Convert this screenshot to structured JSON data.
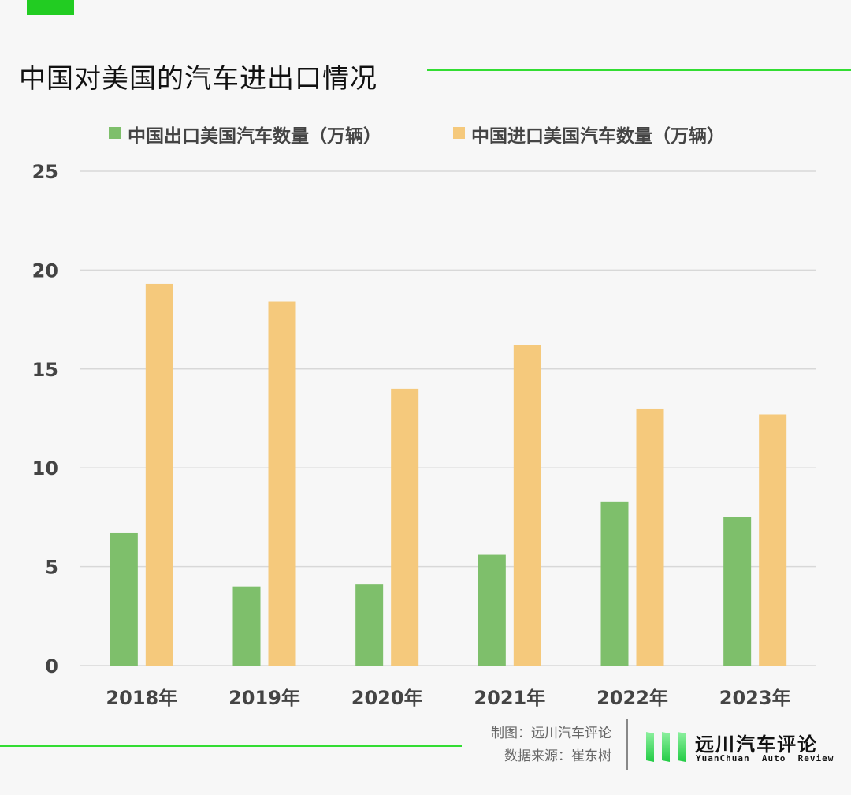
{
  "colors": {
    "export": "#7ebf6b",
    "import": "#f5c97c",
    "accent": "#33dd33"
  },
  "credits": {
    "maker": "制图：远川汽车评论",
    "source": "数据来源：崔东树"
  },
  "logo": {
    "cn": "远川汽车评论",
    "en": "YuanChuan  Auto  Review",
    "icon": "bars-logo-icon"
  },
  "chart_data": {
    "type": "bar",
    "title": "中国对美国的汽车进出口情况",
    "categories": [
      "2018年",
      "2019年",
      "2020年",
      "2021年",
      "2022年",
      "2023年"
    ],
    "series": [
      {
        "name": "中国出口美国汽车数量（万辆）",
        "values": [
          6.7,
          4.0,
          4.1,
          5.6,
          8.3,
          7.5
        ]
      },
      {
        "name": "中国进口美国汽车数量（万辆）",
        "values": [
          19.3,
          18.4,
          14.0,
          16.2,
          13.0,
          12.7
        ]
      }
    ],
    "yticks": [
      "0",
      "5",
      "10",
      "15",
      "20",
      "25"
    ],
    "ylim": [
      0,
      25
    ],
    "xlabel": "",
    "ylabel": "",
    "grid": true,
    "legend": "top"
  }
}
